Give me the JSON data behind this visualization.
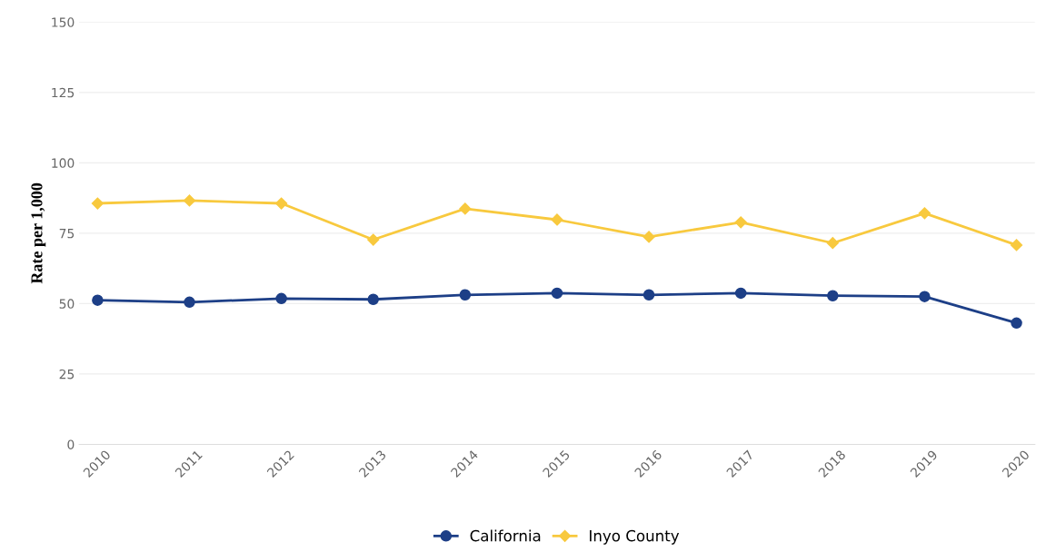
{
  "chart_data": {
    "type": "line",
    "ylabel": "Rate per 1,000",
    "categories": [
      "2010",
      "2011",
      "2012",
      "2013",
      "2014",
      "2015",
      "2016",
      "2017",
      "2018",
      "2019",
      "2020"
    ],
    "series": [
      {
        "name": "California",
        "color": "#1d3f87",
        "marker": "circle",
        "values": [
          51.2,
          50.5,
          51.8,
          51.5,
          53.1,
          53.7,
          53.1,
          53.7,
          52.8,
          52.5,
          43.1
        ]
      },
      {
        "name": "Inyo County",
        "color": "#f8c93e",
        "marker": "diamond",
        "values": [
          85.6,
          86.6,
          85.6,
          72.7,
          83.7,
          79.8,
          73.7,
          78.9,
          71.5,
          82.1,
          70.8
        ]
      }
    ],
    "ylim": [
      0,
      150
    ],
    "yticks": [
      0,
      25,
      50,
      75,
      100,
      125,
      150
    ],
    "grid": "y",
    "legend": "bottom"
  }
}
